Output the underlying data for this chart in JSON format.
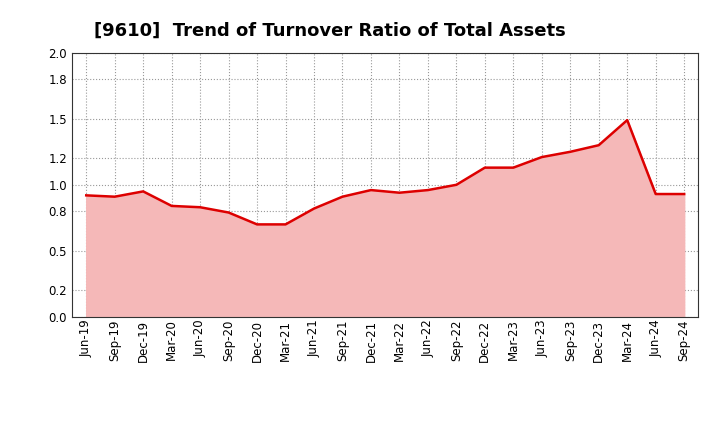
{
  "title": "[9610]  Trend of Turnover Ratio of Total Assets",
  "x_labels": [
    "Jun-19",
    "Sep-19",
    "Dec-19",
    "Mar-20",
    "Jun-20",
    "Sep-20",
    "Dec-20",
    "Mar-21",
    "Jun-21",
    "Sep-21",
    "Dec-21",
    "Mar-22",
    "Jun-22",
    "Sep-22",
    "Dec-22",
    "Mar-23",
    "Jun-23",
    "Sep-23",
    "Dec-23",
    "Mar-24",
    "Jun-24",
    "Sep-24"
  ],
  "y_values": [
    0.92,
    0.91,
    0.95,
    0.84,
    0.83,
    0.79,
    0.7,
    0.7,
    0.82,
    0.91,
    0.96,
    0.94,
    0.96,
    1.0,
    1.13,
    1.13,
    1.21,
    1.25,
    1.3,
    1.49,
    0.93,
    0.93
  ],
  "line_color": "#dd0000",
  "fill_color": "#f5b8b8",
  "ylim": [
    0.0,
    2.0
  ],
  "yticks": [
    0.0,
    0.2,
    0.5,
    0.8,
    1.0,
    1.2,
    1.5,
    1.8,
    2.0
  ],
  "background_color": "#ffffff",
  "plot_bg_color": "#f0f0f0",
  "grid_color": "#999999",
  "title_fontsize": 13,
  "tick_fontsize": 8.5
}
